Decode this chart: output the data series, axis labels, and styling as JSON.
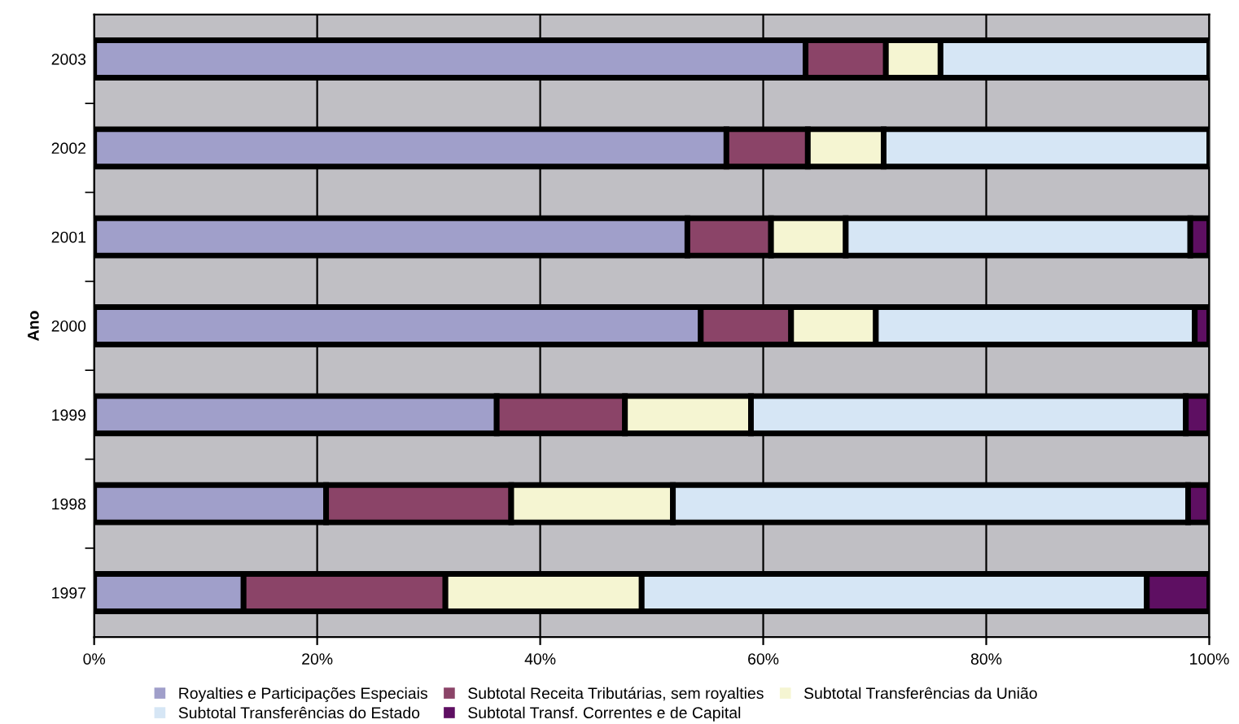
{
  "chart_data": {
    "type": "bar",
    "orientation": "horizontal",
    "stacked": true,
    "ylabel": "Ano",
    "categories": [
      "2003",
      "2002",
      "2001",
      "2000",
      "1999",
      "1998",
      "1997"
    ],
    "series": [
      {
        "name": "Royalties e Participações Especiais",
        "color": "#a09fca",
        "values": [
          63.8,
          56.7,
          53.2,
          54.4,
          36.1,
          20.8,
          13.4
        ]
      },
      {
        "name": "Subtotal Receita Tributárias, sem royalties",
        "color": "#8b4468",
        "values": [
          7.2,
          7.3,
          7.5,
          8.1,
          11.5,
          16.6,
          18.1
        ]
      },
      {
        "name": "Subtotal Transferências da União",
        "color": "#f5f5d2",
        "values": [
          4.9,
          6.8,
          6.7,
          7.6,
          11.3,
          14.5,
          17.6
        ]
      },
      {
        "name": "Subtotal Transferências do Estado",
        "color": "#d6e6f5",
        "values": [
          24.1,
          29.2,
          30.9,
          28.6,
          39.0,
          46.2,
          45.3
        ]
      },
      {
        "name": "Subtotal Transf. Correntes e de Capital",
        "color": "#5e0f62",
        "values": [
          null,
          null,
          1.7,
          1.3,
          2.1,
          1.9,
          5.6
        ]
      }
    ],
    "xlim": [
      0,
      100
    ],
    "xticks": [
      {
        "value": 0,
        "label": "0%"
      },
      {
        "value": 20,
        "label": "20%"
      },
      {
        "value": 40,
        "label": "40%"
      },
      {
        "value": 60,
        "label": "60%"
      },
      {
        "value": 80,
        "label": "80%"
      },
      {
        "value": 100,
        "label": "100%"
      }
    ],
    "grid": "x",
    "legend": "bottom"
  }
}
